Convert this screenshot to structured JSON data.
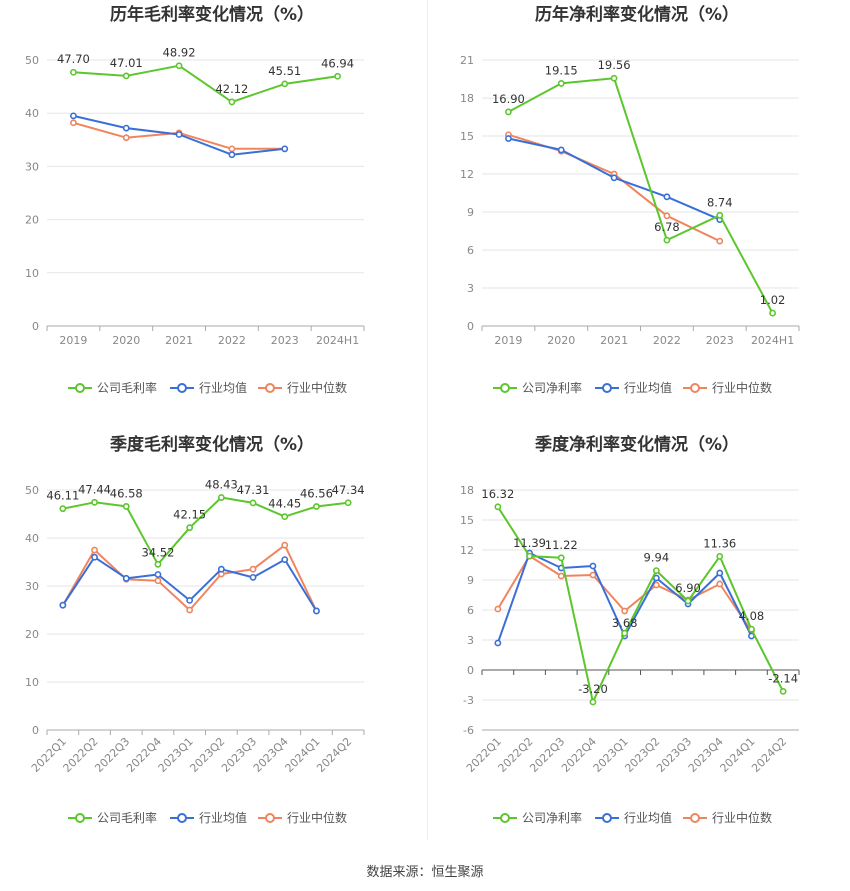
{
  "source": "数据来源：恒生聚源",
  "colors": {
    "company": "#5cc62d",
    "avg": "#3a6fd8",
    "median": "#f0855d"
  },
  "chart_data": [
    {
      "type": "line",
      "title": "历年毛利率变化情况（%）",
      "categories": [
        "2019",
        "2020",
        "2021",
        "2022",
        "2023",
        "2024H1"
      ],
      "ylim": [
        0,
        50
      ],
      "yticks": [
        0,
        10,
        20,
        30,
        40,
        50
      ],
      "series": [
        {
          "name": "公司毛利率",
          "key": "company",
          "labels": true,
          "values": [
            47.7,
            47.01,
            48.92,
            42.12,
            45.51,
            46.94
          ],
          "text": [
            "47.70",
            "47.01",
            "48.92",
            "42.12",
            "45.51",
            "46.94"
          ]
        },
        {
          "name": "行业均值",
          "key": "avg",
          "values": [
            39.5,
            37.2,
            36.0,
            32.2,
            33.3,
            null
          ]
        },
        {
          "name": "行业中位数",
          "key": "median",
          "values": [
            38.2,
            35.4,
            36.3,
            33.3,
            33.3,
            null
          ]
        }
      ]
    },
    {
      "type": "line",
      "title": "历年净利率变化情况（%）",
      "categories": [
        "2019",
        "2020",
        "2021",
        "2022",
        "2023",
        "2024H1"
      ],
      "ylim": [
        0,
        21
      ],
      "yticks": [
        0,
        3,
        6,
        9,
        12,
        15,
        18,
        21
      ],
      "series": [
        {
          "name": "公司净利率",
          "key": "company",
          "labels": true,
          "values": [
            16.9,
            19.15,
            19.56,
            6.78,
            8.74,
            1.02
          ],
          "text": [
            "16.90",
            "19.15",
            "19.56",
            "6.78",
            "8.74",
            "1.02"
          ]
        },
        {
          "name": "行业均值",
          "key": "avg",
          "values": [
            14.8,
            13.9,
            11.7,
            10.2,
            8.4,
            null
          ]
        },
        {
          "name": "行业中位数",
          "key": "median",
          "values": [
            15.1,
            13.8,
            12.0,
            8.7,
            6.7,
            null
          ]
        }
      ]
    },
    {
      "type": "line",
      "title": "季度毛利率变化情况（%）",
      "categories": [
        "2022Q1",
        "2022Q2",
        "2022Q3",
        "2022Q4",
        "2023Q1",
        "2023Q2",
        "2023Q3",
        "2023Q4",
        "2024Q1",
        "2024Q2"
      ],
      "ylim": [
        0,
        50
      ],
      "yticks": [
        0,
        10,
        20,
        30,
        40,
        50
      ],
      "series": [
        {
          "name": "公司毛利率",
          "key": "company",
          "labels": true,
          "values": [
            46.11,
            47.44,
            46.58,
            34.52,
            42.15,
            48.43,
            47.31,
            44.45,
            46.56,
            47.34
          ],
          "text": [
            "46.11",
            "47.44",
            "46.58",
            "34.52",
            "42.15",
            "48.43",
            "47.31",
            "44.45",
            "46.56",
            "47.34"
          ]
        },
        {
          "name": "行业均值",
          "key": "avg",
          "values": [
            26.0,
            36.0,
            31.6,
            32.4,
            27.0,
            33.5,
            31.8,
            35.5,
            24.8,
            null
          ]
        },
        {
          "name": "行业中位数",
          "key": "median",
          "values": [
            26.0,
            37.5,
            31.4,
            31.1,
            25.0,
            32.5,
            33.5,
            38.5,
            24.8,
            null
          ]
        }
      ]
    },
    {
      "type": "line",
      "title": "季度净利率变化情况（%）",
      "categories": [
        "2022Q1",
        "2022Q2",
        "2022Q3",
        "2022Q4",
        "2023Q1",
        "2023Q2",
        "2023Q3",
        "2023Q4",
        "2024Q1",
        "2024Q2"
      ],
      "ylim": [
        -6,
        18
      ],
      "yticks": [
        -6,
        -3,
        0,
        3,
        6,
        9,
        12,
        15,
        18
      ],
      "series": [
        {
          "name": "公司净利率",
          "key": "company",
          "labels": true,
          "values": [
            16.32,
            11.39,
            11.22,
            -3.2,
            3.68,
            9.94,
            6.9,
            11.36,
            4.08,
            -2.14
          ],
          "text": [
            "16.32",
            "11.39",
            "11.22",
            "-3.20",
            "3.68",
            "9.94",
            "6.90",
            "11.36",
            "4.08",
            "-2.14"
          ]
        },
        {
          "name": "行业均值",
          "key": "avg",
          "values": [
            2.7,
            11.7,
            10.2,
            10.4,
            3.4,
            9.2,
            6.6,
            9.7,
            3.4,
            null
          ]
        },
        {
          "name": "行业中位数",
          "key": "median",
          "values": [
            6.1,
            11.4,
            9.4,
            9.5,
            5.9,
            8.5,
            7.0,
            8.6,
            3.9,
            null
          ]
        }
      ]
    }
  ]
}
